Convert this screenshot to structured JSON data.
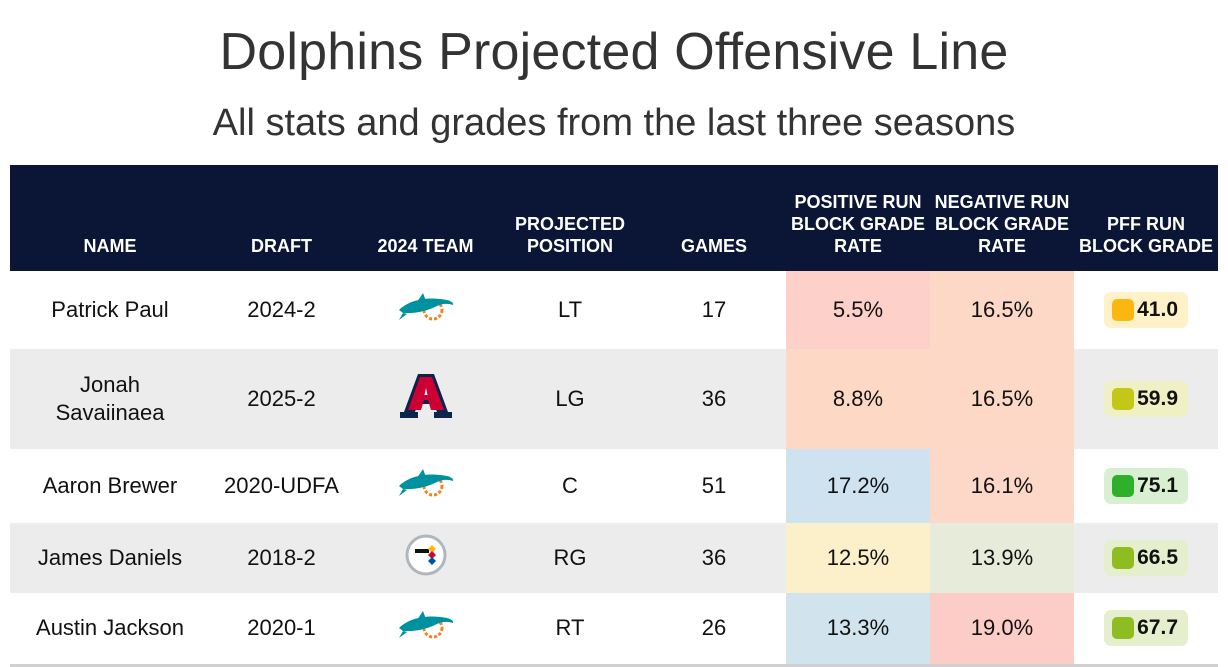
{
  "title": "Dolphins Projected Offensive Line",
  "subtitle": "All stats and grades from the last three seasons",
  "columns": {
    "name": "NAME",
    "draft": "DRAFT",
    "team": "2024 TEAM",
    "position": "PROJECTED POSITION",
    "games": "GAMES",
    "positive": "POSITIVE RUN BLOCK GRADE RATE",
    "negative": "NEGATIVE RUN BLOCK GRADE RATE",
    "grade": "PFF RUN BLOCK GRADE"
  },
  "rows": [
    {
      "name": "Patrick Paul",
      "draft": "2024-2",
      "team_icon": "dolphins-logo-icon",
      "position": "LT",
      "games": "17",
      "positive": "5.5%",
      "negative": "16.5%",
      "grade": "41.0",
      "positive_color": "#fdd0c9",
      "negative_color": "#fdd8c6",
      "grade_bg": "#fff2c8",
      "grade_dot": "#fbb70f"
    },
    {
      "name": "Jonah Savaiinaea",
      "draft": "2025-2",
      "team_icon": "arizona-wildcats-logo-icon",
      "position": "LG",
      "games": "36",
      "positive": "8.8%",
      "negative": "16.5%",
      "grade": "59.9",
      "positive_color": "#fdd9c5",
      "negative_color": "#fdd8c6",
      "grade_bg": "#eff0c4",
      "grade_dot": "#c2c718"
    },
    {
      "name": "Aaron Brewer",
      "draft": "2020-UDFA",
      "team_icon": "dolphins-logo-icon",
      "position": "C",
      "games": "51",
      "positive": "17.2%",
      "negative": "16.1%",
      "grade": "75.1",
      "positive_color": "#cee3ef",
      "negative_color": "#fdd8c8",
      "grade_bg": "#d9efd2",
      "grade_dot": "#2fb02a"
    },
    {
      "name": "James Daniels",
      "draft": "2018-2",
      "team_icon": "steelers-logo-icon",
      "position": "RG",
      "games": "36",
      "positive": "12.5%",
      "negative": "13.9%",
      "grade": "66.5",
      "positive_color": "#fbf0c9",
      "negative_color": "#e6ecd9",
      "grade_bg": "#e5efcd",
      "grade_dot": "#8ebd22"
    },
    {
      "name": "Austin Jackson",
      "draft": "2020-1",
      "team_icon": "dolphins-logo-icon",
      "position": "RT",
      "games": "26",
      "positive": "13.3%",
      "negative": "19.0%",
      "grade": "67.7",
      "positive_color": "#d1e4ee",
      "negative_color": "#fccdc6",
      "grade_bg": "#e5efcd",
      "grade_dot": "#8ebd22"
    }
  ]
}
